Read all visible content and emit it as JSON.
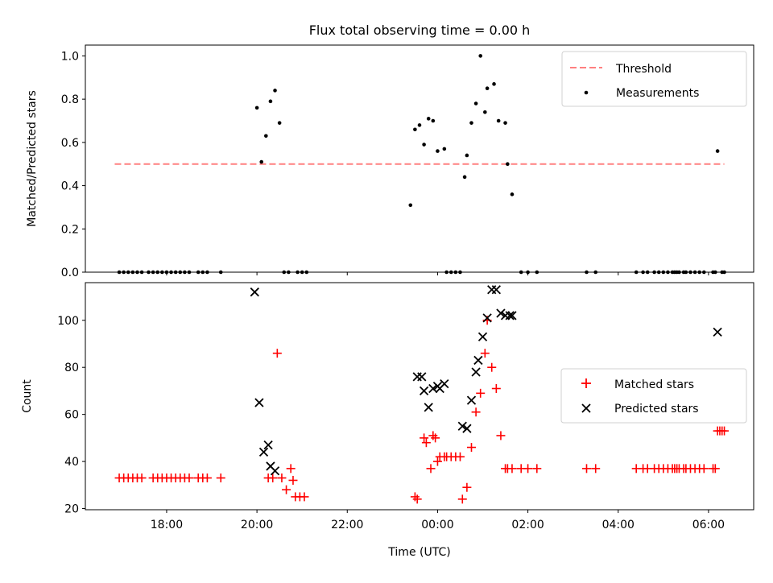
{
  "chart_data": [
    {
      "type": "scatter",
      "title": "Flux total observing time = 0.00 h",
      "xlabel": "",
      "ylabel": "Matched/Predicted stars",
      "ylim": [
        0.0,
        1.05
      ],
      "yticks": [
        "0.0",
        "0.2",
        "0.4",
        "0.6",
        "0.8",
        "1.0"
      ],
      "xlim_hours_from_midnight": [
        -7.8,
        7.0
      ],
      "legend_position": "top-right",
      "threshold": {
        "name": "Threshold",
        "value": 0.5,
        "x": [
          -7.15,
          6.35
        ],
        "color": "#ff8080"
      },
      "series": [
        {
          "name": "Measurements",
          "color": "#000000",
          "x": [
            -7.05,
            -6.95,
            -6.85,
            -6.75,
            -6.65,
            -6.55,
            -6.4,
            -6.3,
            -6.2,
            -6.1,
            -6.0,
            -5.9,
            -5.8,
            -5.7,
            -5.6,
            -5.5,
            -5.3,
            -5.2,
            -5.1,
            -4.8,
            -4.0,
            -3.9,
            -3.8,
            -3.7,
            -3.6,
            -3.5,
            -3.4,
            -3.3,
            -3.1,
            -3.0,
            -2.9,
            -0.6,
            -0.5,
            -0.4,
            -0.3,
            -0.2,
            -0.1,
            0.0,
            0.15,
            0.2,
            0.3,
            0.4,
            0.5,
            0.6,
            0.65,
            0.75,
            0.85,
            0.95,
            1.05,
            1.1,
            1.25,
            1.35,
            1.5,
            1.55,
            1.65,
            1.85,
            2.0,
            2.2,
            3.3,
            3.5,
            4.4,
            4.55,
            4.65,
            4.8,
            4.9,
            5.0,
            5.1,
            5.2,
            5.25,
            5.3,
            5.35,
            5.45,
            5.5,
            5.6,
            5.7,
            5.8,
            5.9,
            6.1,
            6.15,
            6.2,
            6.3,
            6.35
          ],
          "y": [
            0,
            0,
            0,
            0,
            0,
            0,
            0,
            0,
            0,
            0,
            0,
            0,
            0,
            0,
            0,
            0,
            0,
            0,
            0,
            0,
            0.76,
            0.51,
            0.63,
            0.79,
            0.84,
            0.69,
            0,
            0,
            0,
            0,
            0,
            0.31,
            0.66,
            0.68,
            0.59,
            0.71,
            0.7,
            0.56,
            0.57,
            0,
            0,
            0,
            0,
            0.44,
            0.54,
            0.69,
            0.78,
            1.0,
            0.74,
            0.85,
            0.87,
            0.7,
            0.69,
            0.5,
            0.36,
            0,
            0,
            0,
            0,
            0,
            0,
            0,
            0,
            0,
            0,
            0,
            0,
            0,
            0,
            0,
            0,
            0,
            0,
            0,
            0,
            0,
            0,
            0,
            0,
            0.56,
            0,
            0
          ]
        }
      ]
    },
    {
      "type": "scatter",
      "xlabel": "Time (UTC)",
      "ylabel": "Count",
      "ylim": [
        19.5,
        116
      ],
      "yticks": [
        "20",
        "40",
        "60",
        "80",
        "100"
      ],
      "xlim_hours_from_midnight": [
        -7.8,
        7.0
      ],
      "xticks": [
        "18:00",
        "20:00",
        "22:00",
        "00:00",
        "02:00",
        "04:00",
        "06:00"
      ],
      "legend_position": "center-right",
      "series": [
        {
          "name": "Matched stars",
          "color": "#ff0000",
          "marker": "+",
          "x": [
            -7.05,
            -6.95,
            -6.85,
            -6.75,
            -6.65,
            -6.55,
            -6.3,
            -6.2,
            -6.1,
            -6.0,
            -5.9,
            -5.8,
            -5.7,
            -5.6,
            -5.5,
            -5.3,
            -5.2,
            -5.1,
            -4.8,
            -3.75,
            -3.65,
            -3.55,
            -3.45,
            -3.35,
            -3.25,
            -3.2,
            -3.15,
            -3.05,
            -2.95,
            -0.5,
            -0.45,
            -0.3,
            -0.25,
            -0.15,
            -0.1,
            -0.05,
            0.0,
            0.05,
            0.15,
            0.2,
            0.3,
            0.4,
            0.5,
            0.55,
            0.65,
            0.75,
            0.85,
            0.95,
            1.05,
            1.1,
            1.2,
            1.3,
            1.4,
            1.5,
            1.55,
            1.65,
            1.85,
            2.0,
            2.2,
            3.3,
            3.5,
            4.4,
            4.55,
            4.65,
            4.8,
            4.9,
            5.0,
            5.1,
            5.2,
            5.25,
            5.3,
            5.35,
            5.45,
            5.5,
            5.6,
            5.7,
            5.8,
            5.9,
            6.1,
            6.15,
            6.2,
            6.25,
            6.3,
            6.35
          ],
          "y": [
            33,
            33,
            33,
            33,
            33,
            33,
            33,
            33,
            33,
            33,
            33,
            33,
            33,
            33,
            33,
            33,
            33,
            33,
            33,
            33,
            33,
            86,
            33,
            28,
            37,
            32,
            25,
            25,
            25,
            25,
            24,
            50,
            48,
            37,
            51,
            50,
            40,
            42,
            42,
            42,
            42,
            42,
            42,
            24,
            29,
            46,
            61,
            69,
            86,
            100,
            80,
            71,
            51,
            37,
            37,
            37,
            37,
            37,
            37,
            37,
            37,
            37,
            37,
            37,
            37,
            37,
            37,
            37,
            37,
            37,
            37,
            37,
            37,
            37,
            37,
            37,
            37,
            37,
            37,
            37,
            53,
            53,
            53,
            53
          ]
        },
        {
          "name": "Predicted stars",
          "color": "#000000",
          "marker": "x",
          "x": [
            -4.05,
            -3.95,
            -3.85,
            -3.75,
            -3.7,
            -3.6,
            -0.45,
            -0.35,
            -0.3,
            -0.2,
            -0.1,
            0.0,
            0.05,
            0.15,
            0.55,
            0.65,
            0.75,
            0.85,
            0.9,
            1.0,
            1.1,
            1.2,
            1.3,
            1.4,
            1.5,
            1.6,
            1.65,
            6.2
          ],
          "y": [
            112,
            65,
            44,
            47,
            38,
            36,
            76,
            76,
            70,
            63,
            71,
            72,
            71,
            73,
            55,
            54,
            66,
            78,
            83,
            93,
            101,
            113,
            113,
            103,
            102,
            102,
            102,
            95
          ]
        }
      ]
    }
  ]
}
